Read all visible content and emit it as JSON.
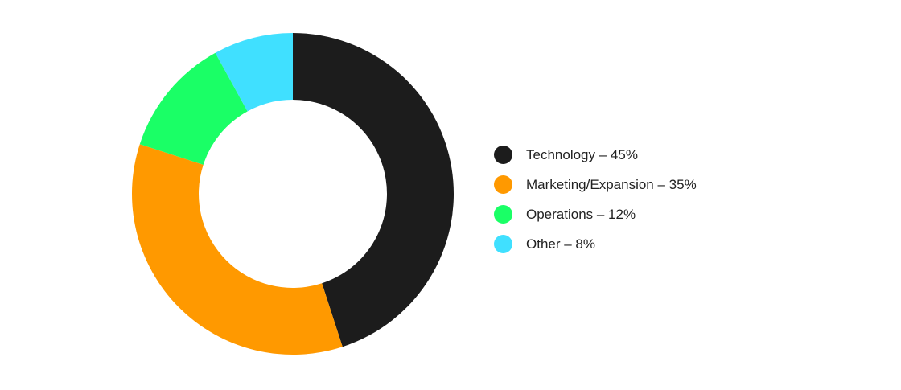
{
  "chart_data": {
    "type": "pie",
    "donut": true,
    "start": "top",
    "direction": "clockwise",
    "legend_placement": "right",
    "slices": [
      {
        "label": "Technology – 45%",
        "name": "Technology",
        "value": 45,
        "color": "#1c1c1c"
      },
      {
        "label": "Marketing/Expansion – 35%",
        "name": "Marketing/Expansion",
        "value": 35,
        "color": "#ff9900"
      },
      {
        "label": "Operations – 12%",
        "name": "Operations",
        "value": 12,
        "color": "#1aff66"
      },
      {
        "label": "Other – 8%",
        "name": "Other",
        "value": 8,
        "color": "#40e0ff"
      }
    ]
  }
}
